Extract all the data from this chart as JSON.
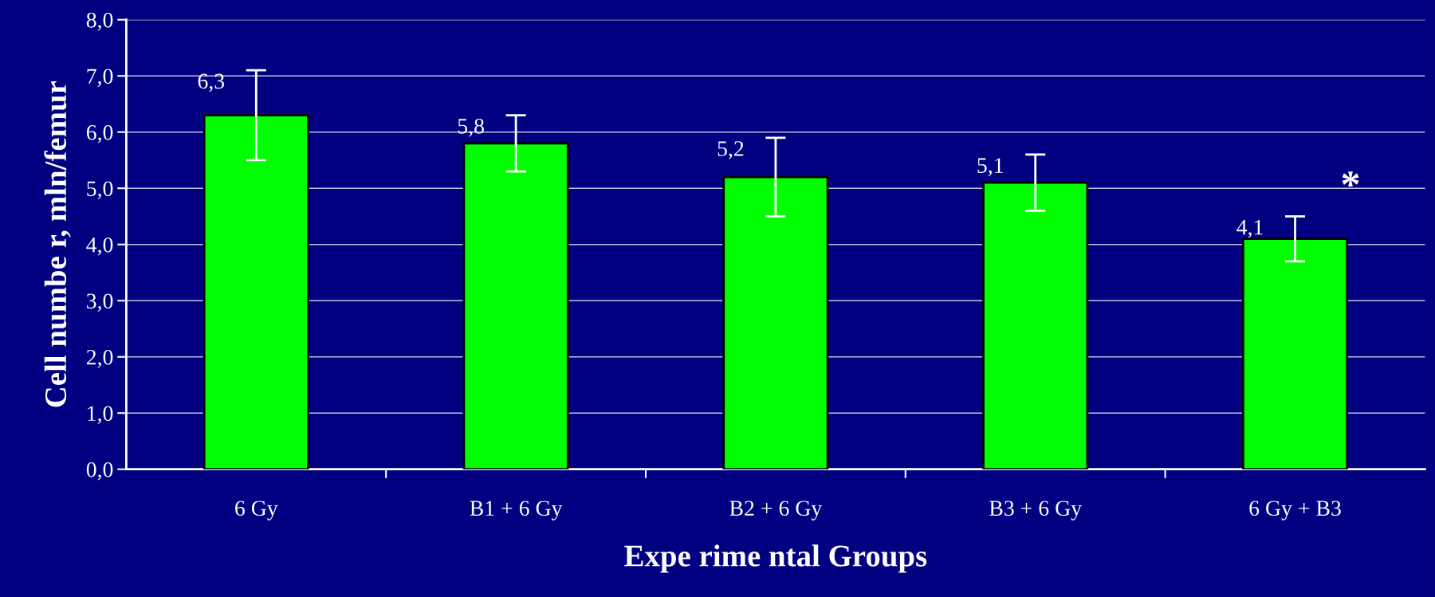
{
  "chart_data": {
    "type": "bar",
    "xlabel": "Expe rime ntal Groups",
    "ylabel": "Cell numbe r, mln/femur",
    "categories": [
      "6 Gy",
      "B1 + 6 Gy",
      "B2 + 6 Gy",
      "B3 + 6 Gy",
      "6 Gy + B3"
    ],
    "series": [
      {
        "color": "#00ff00",
        "values": [
          6.3,
          5.8,
          5.2,
          5.1,
          4.1
        ],
        "errors": [
          0.8,
          0.5,
          0.7,
          0.5,
          0.4
        ],
        "value_labels": [
          "6,3",
          "5,8",
          "5,2",
          "5,1",
          "4,1"
        ]
      }
    ],
    "ylim": [
      0,
      8
    ],
    "yticks": [
      {
        "value": 0,
        "label": "0,0"
      },
      {
        "value": 1,
        "label": "1,0"
      },
      {
        "value": 2,
        "label": "2,0"
      },
      {
        "value": 3,
        "label": "3,0"
      },
      {
        "value": 4,
        "label": "4,0"
      },
      {
        "value": 5,
        "label": "5,0"
      },
      {
        "value": 6,
        "label": "6,0"
      },
      {
        "value": 7,
        "label": "7,0"
      },
      {
        "value": 8,
        "label": "8,0"
      }
    ],
    "grid": "y",
    "legend": false,
    "annotations": [
      "*"
    ]
  }
}
